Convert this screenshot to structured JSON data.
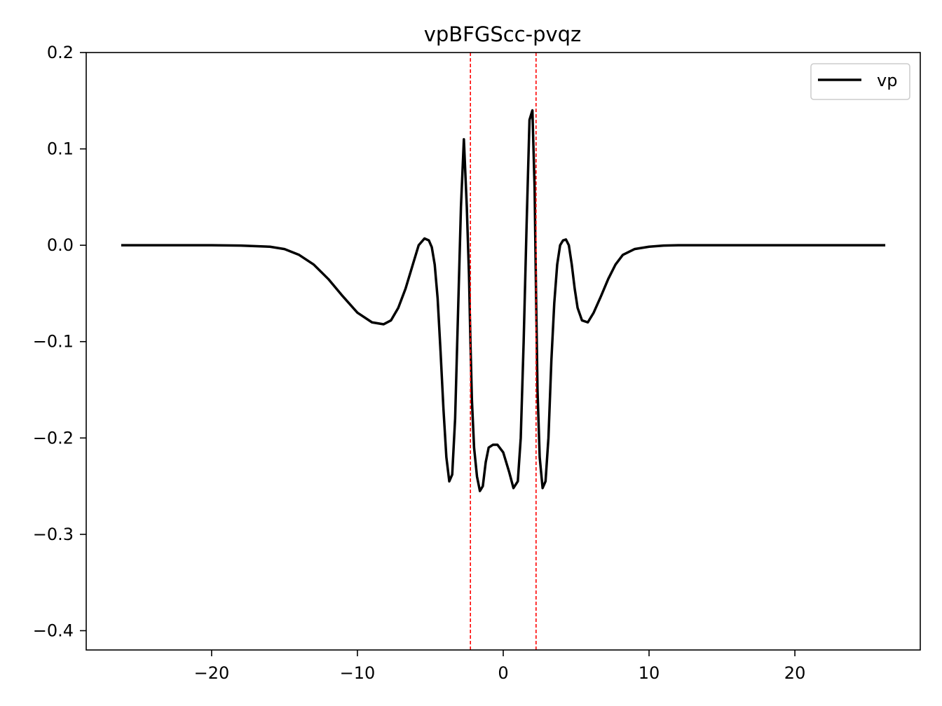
{
  "chart_data": {
    "type": "line",
    "title": "vpBFGScc-pvqz",
    "xlabel": "",
    "ylabel": "",
    "xlim": [
      -28.6,
      28.6
    ],
    "ylim": [
      -0.42,
      0.2
    ],
    "x_ticks": [
      -20,
      -10,
      0,
      10,
      20
    ],
    "x_tick_labels": [
      "−20",
      "−10",
      "0",
      "10",
      "20"
    ],
    "y_ticks": [
      0.2,
      0.1,
      0.0,
      -0.1,
      -0.2,
      -0.3,
      -0.4
    ],
    "y_tick_labels": [
      "0.2",
      "0.1",
      "0.0",
      "−0.1",
      "−0.2",
      "−0.3",
      "−0.4"
    ],
    "grid": false,
    "legend_position": "top-right",
    "vertical_lines": {
      "x": [
        -2.25,
        2.25
      ],
      "color": "#ff0000",
      "style": "dashed"
    },
    "series": [
      {
        "name": "vp",
        "color": "#000000",
        "x": [
          -26.2,
          -20,
          -18,
          -16,
          -15,
          -14,
          -13,
          -12,
          -11,
          -10,
          -9,
          -8.2,
          -7.7,
          -7.2,
          -6.7,
          -6.2,
          -5.8,
          -5.4,
          -5.1,
          -4.9,
          -4.7,
          -4.5,
          -4.3,
          -4.1,
          -3.9,
          -3.7,
          -3.5,
          -3.3,
          -3.1,
          -2.9,
          -2.7,
          -2.5,
          -2.35,
          -2.25,
          -2.15,
          -2.0,
          -1.8,
          -1.6,
          -1.4,
          -1.2,
          -1.0,
          -0.7,
          -0.4,
          0.0,
          0.4,
          0.7,
          1.0,
          1.2,
          1.4,
          1.6,
          1.8,
          2.0,
          2.15,
          2.25,
          2.35,
          2.5,
          2.7,
          2.9,
          3.1,
          3.3,
          3.5,
          3.7,
          3.9,
          4.1,
          4.3,
          4.5,
          4.7,
          4.9,
          5.1,
          5.4,
          5.8,
          6.2,
          6.7,
          7.2,
          7.7,
          8.2,
          9,
          10,
          11,
          12,
          13,
          14,
          15,
          16,
          18,
          20,
          26.2
        ],
        "y": [
          0.0,
          0.0,
          -0.0003,
          -0.0015,
          -0.004,
          -0.01,
          -0.02,
          -0.035,
          -0.053,
          -0.07,
          -0.08,
          -0.082,
          -0.078,
          -0.065,
          -0.045,
          -0.02,
          0.0,
          0.007,
          0.005,
          -0.002,
          -0.02,
          -0.055,
          -0.11,
          -0.17,
          -0.22,
          -0.245,
          -0.238,
          -0.18,
          -0.07,
          0.04,
          0.11,
          0.04,
          -0.03,
          -0.1,
          -0.16,
          -0.21,
          -0.24,
          -0.255,
          -0.25,
          -0.225,
          -0.21,
          -0.207,
          -0.207,
          -0.215,
          -0.235,
          -0.252,
          -0.245,
          -0.2,
          -0.1,
          0.02,
          0.13,
          0.14,
          0.06,
          -0.05,
          -0.15,
          -0.22,
          -0.252,
          -0.245,
          -0.2,
          -0.12,
          -0.06,
          -0.02,
          0.0,
          0.005,
          0.006,
          0.0,
          -0.02,
          -0.045,
          -0.065,
          -0.078,
          -0.08,
          -0.07,
          -0.053,
          -0.035,
          -0.02,
          -0.01,
          -0.004,
          -0.0015,
          -0.0003,
          0.0,
          0.0,
          0.0,
          0.0,
          0.0,
          0.0,
          0.0,
          0.0
        ]
      }
    ]
  }
}
